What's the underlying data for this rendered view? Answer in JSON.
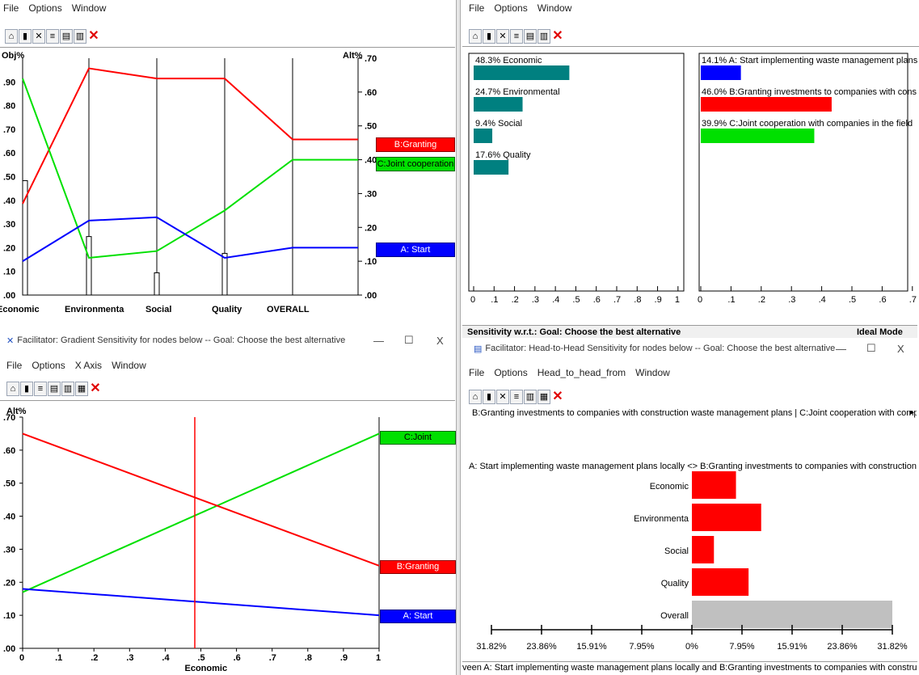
{
  "menus": {
    "file": "File",
    "options": "Options",
    "window": "Window",
    "xaxis": "X Axis",
    "h2h_from": "Head_to_head_from"
  },
  "perf_panel": {
    "left_axis_title": "Obj%",
    "right_axis_title": "Alt%",
    "left_ticks": [
      ".00",
      ".10",
      ".20",
      ".30",
      ".40",
      ".50",
      ".60",
      ".70",
      ".80",
      ".90"
    ],
    "right_ticks": [
      ".00",
      ".10",
      ".20",
      ".30",
      ".40",
      ".50",
      ".60",
      ".70"
    ],
    "columns": [
      "Economic",
      "Environmenta",
      "Social",
      "Quality",
      "OVERALL"
    ],
    "legend": {
      "b": "B:Granting",
      "c": "C:Joint cooperation",
      "a": "A: Start"
    },
    "colors": {
      "a": "#0000ff",
      "b": "#ff0000",
      "c": "#00e000"
    }
  },
  "dynamic_panel": {
    "objectives": [
      {
        "label": "48.3% Economic",
        "value": 0.483
      },
      {
        "label": "24.7% Environmental",
        "value": 0.247
      },
      {
        "label": "9.4% Social",
        "value": 0.094
      },
      {
        "label": "17.6% Quality",
        "value": 0.176
      }
    ],
    "alternatives": [
      {
        "label": "14.1% A: Start implementing waste management plans",
        "value": 0.141,
        "color": "#0000ff"
      },
      {
        "label": "46.0% B:Granting investments to companies with cons",
        "value": 0.46,
        "color": "#ff0000"
      },
      {
        "label": "39.9% C:Joint cooperation with companies in the field",
        "value": 0.399,
        "color": "#00e000"
      }
    ],
    "left_ticks": [
      "0",
      ".1",
      ".2",
      ".3",
      ".4",
      ".5",
      ".6",
      ".7",
      ".8",
      ".9",
      "1"
    ],
    "right_ticks": [
      "0",
      ".1",
      ".2",
      ".3",
      ".4",
      ".5",
      ".6",
      ".7"
    ],
    "status_left": "Sensitivity w.r.t.: Goal: Choose the best alternative",
    "status_right": "Ideal Mode",
    "bar_color": "#008080"
  },
  "gradient_window": {
    "title": "Facilitator: Gradient Sensitivity for nodes below -- Goal: Choose the best alternative",
    "minimize": "—",
    "maximize": "☐",
    "close": "X",
    "y_axis_title": "Alt%",
    "x_axis_label": "Economic",
    "y_ticks": [
      ".00",
      ".10",
      ".20",
      ".30",
      ".40",
      ".50",
      ".60",
      ".70"
    ],
    "x_ticks": [
      "0",
      ".1",
      ".2",
      ".3",
      ".4",
      ".5",
      ".6",
      ".7",
      ".8",
      ".9",
      "1"
    ],
    "legend": {
      "c": "C:Joint",
      "b": "B:Granting",
      "a": "A: Start"
    }
  },
  "h2h_window": {
    "title": "Facilitator: Head-to-Head Sensitivity for nodes below -- Goal: Choose the best alternative",
    "minimize": "—",
    "maximize": "☐",
    "close": "X",
    "pair_header": "B:Granting investments to companies with construction waste management plans | C:Joint cooperation with compar",
    "subtitle": "A: Start implementing waste management plans locally <> B:Granting investments to companies with construction w",
    "categories": [
      "Economic",
      "Environmenta",
      "Social",
      "Quality",
      "Overall"
    ],
    "x_ticks": [
      "31.82%",
      "23.86%",
      "15.91%",
      "7.95%",
      "0%",
      "7.95%",
      "15.91%",
      "23.86%",
      "31.82%"
    ],
    "footer": "veen A: Start implementing waste management plans locally and B:Granting investments to companies with constructio"
  },
  "chart_data": [
    {
      "type": "line",
      "title": "",
      "categories": [
        "Economic",
        "Environmenta",
        "Social",
        "Quality",
        "OVERALL"
      ],
      "left_axis": "Obj%",
      "objective_weights": [
        0.483,
        0.247,
        0.094,
        0.176
      ],
      "right_axis": "Alt%",
      "ylim": [
        0,
        0.7
      ],
      "series": [
        {
          "name": "B:Granting",
          "color": "#ff0000",
          "values": [
            0.27,
            0.67,
            0.64,
            0.64,
            0.46
          ]
        },
        {
          "name": "C:Joint cooperation",
          "color": "#00e000",
          "values": [
            0.64,
            0.11,
            0.13,
            0.25,
            0.4
          ]
        },
        {
          "name": "A: Start",
          "color": "#0000ff",
          "values": [
            0.1,
            0.22,
            0.23,
            0.11,
            0.14
          ]
        }
      ]
    },
    {
      "type": "bar",
      "title": "",
      "categories": [
        "Economic",
        "Environmental",
        "Social",
        "Quality"
      ],
      "values": [
        0.483,
        0.247,
        0.094,
        0.176
      ],
      "xlim": [
        0,
        1
      ]
    },
    {
      "type": "bar",
      "title": "",
      "categories": [
        "A: Start implementing waste management plans",
        "B:Granting investments to companies with cons",
        "C:Joint cooperation with companies in the field"
      ],
      "values": [
        0.141,
        0.46,
        0.399
      ],
      "xlim": [
        0,
        0.7
      ]
    },
    {
      "type": "line",
      "title": "",
      "xlabel": "Economic",
      "ylabel": "Alt%",
      "xlim": [
        0,
        1
      ],
      "ylim": [
        0,
        0.7
      ],
      "current_x": 0.483,
      "series": [
        {
          "name": "C:Joint",
          "color": "#00e000",
          "x": [
            0,
            1
          ],
          "y": [
            0.17,
            0.65
          ]
        },
        {
          "name": "B:Granting",
          "color": "#ff0000",
          "x": [
            0,
            1
          ],
          "y": [
            0.65,
            0.25
          ]
        },
        {
          "name": "A: Start",
          "color": "#0000ff",
          "x": [
            0,
            1
          ],
          "y": [
            0.18,
            0.1
          ]
        }
      ]
    },
    {
      "type": "bar",
      "title": "",
      "categories": [
        "Economic",
        "Environmenta",
        "Social",
        "Quality",
        "Overall"
      ],
      "values": [
        7.0,
        11.0,
        3.5,
        9.0,
        31.82
      ],
      "colors": [
        "#ff0000",
        "#ff0000",
        "#ff0000",
        "#ff0000",
        "#c0c0c0"
      ],
      "xlim": [
        -31.82,
        31.82
      ],
      "unit": "%"
    }
  ]
}
